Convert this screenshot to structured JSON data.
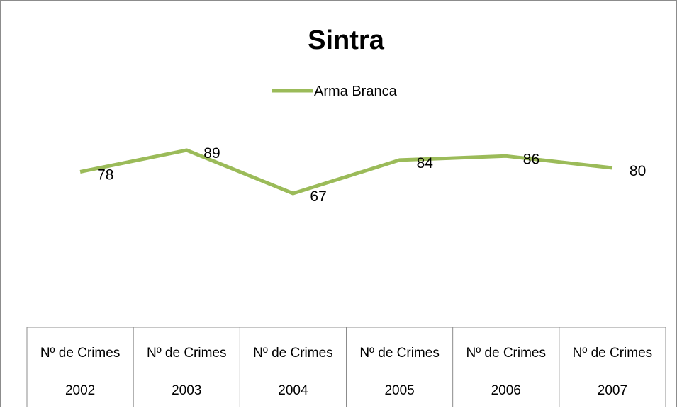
{
  "chart_data": {
    "type": "line",
    "title": "Sintra",
    "categories": [
      {
        "group": "Nº de Crimes",
        "year": "2002"
      },
      {
        "group": "Nº de Crimes",
        "year": "2003"
      },
      {
        "group": "Nº de Crimes",
        "year": "2004"
      },
      {
        "group": "Nº de Crimes",
        "year": "2005"
      },
      {
        "group": "Nº de Crimes",
        "year": "2006"
      },
      {
        "group": "Nº de Crimes",
        "year": "2007"
      }
    ],
    "series": [
      {
        "name": "Arma Branca",
        "values": [
          78,
          89,
          67,
          84,
          86,
          80
        ],
        "color": "#9bbb59"
      }
    ],
    "legend_position": "top",
    "grid": false,
    "data_labels": true,
    "category_axis_style": "table"
  }
}
